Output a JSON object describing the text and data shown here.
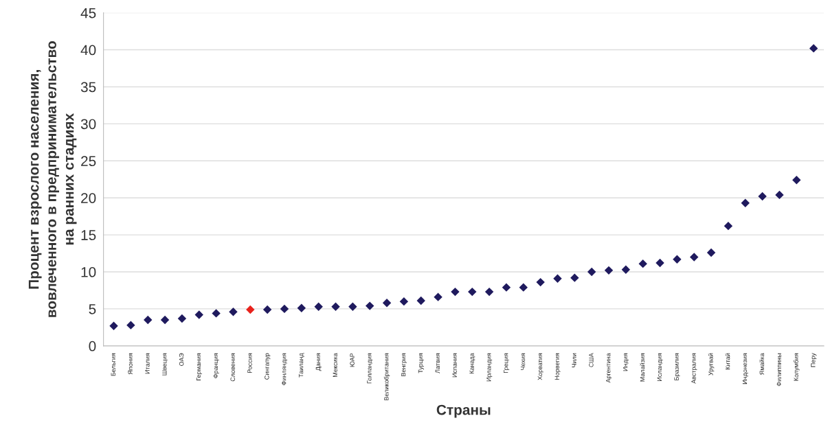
{
  "chart_data": {
    "type": "scatter",
    "xlabel": "Страны",
    "ylabel": "Процент взрослого населения,\nвовлеченного в предпринимательство\nна ранних стадиях",
    "categories": [
      "Бельгия",
      "Япония",
      "Италия",
      "Швеция",
      "ОАЭ",
      "Германия",
      "Франция",
      "Словения",
      "Россия",
      "Сингапур",
      "Финляндия",
      "Таиланд",
      "Дания",
      "Мексика",
      "ЮАР",
      "Голландия",
      "Великобритания",
      "Венгрия",
      "Турция",
      "Латвия",
      "Испания",
      "Канада",
      "Ирландия",
      "Греция",
      "Чехия",
      "Хорватия",
      "Норвегия",
      "Чили",
      "США",
      "Аргентина",
      "Индия",
      "Малайзия",
      "Исландия",
      "Бразилия",
      "Австралия",
      "Уругвай",
      "Китай",
      "Индонезия",
      "Ямайка",
      "Филиппины",
      "Колумбия",
      "Перу"
    ],
    "series": [
      {
        "values": [
          2.7,
          2.8,
          3.5,
          3.5,
          3.7,
          4.2,
          4.4,
          4.6,
          4.9,
          4.9,
          5.0,
          5.1,
          5.3,
          5.3,
          5.3,
          5.4,
          5.8,
          6.0,
          6.1,
          6.6,
          7.3,
          7.3,
          7.3,
          7.9,
          7.9,
          8.6,
          9.1,
          9.2,
          10.0,
          10.2,
          10.3,
          11.1,
          11.2,
          11.7,
          12.0,
          12.6,
          16.2,
          19.3,
          20.2,
          20.4,
          22.4,
          40.2
        ],
        "colors": [
          "#1f1a5e",
          "#1f1a5e",
          "#1f1a5e",
          "#1f1a5e",
          "#1f1a5e",
          "#1f1a5e",
          "#1f1a5e",
          "#1f1a5e",
          "#e8221c",
          "#1f1a5e",
          "#1f1a5e",
          "#1f1a5e",
          "#1f1a5e",
          "#1f1a5e",
          "#1f1a5e",
          "#1f1a5e",
          "#1f1a5e",
          "#1f1a5e",
          "#1f1a5e",
          "#1f1a5e",
          "#1f1a5e",
          "#1f1a5e",
          "#1f1a5e",
          "#1f1a5e",
          "#1f1a5e",
          "#1f1a5e",
          "#1f1a5e",
          "#1f1a5e",
          "#1f1a5e",
          "#1f1a5e",
          "#1f1a5e",
          "#1f1a5e",
          "#1f1a5e",
          "#1f1a5e",
          "#1f1a5e",
          "#1f1a5e",
          "#1f1a5e",
          "#1f1a5e",
          "#1f1a5e",
          "#1f1a5e",
          "#1f1a5e",
          "#1f1a5e"
        ]
      }
    ],
    "ylim": [
      0,
      45
    ],
    "yticks": [
      0,
      5,
      10,
      15,
      20,
      25,
      30,
      35,
      40,
      45
    ],
    "grid": "y",
    "marker": "diamond"
  }
}
